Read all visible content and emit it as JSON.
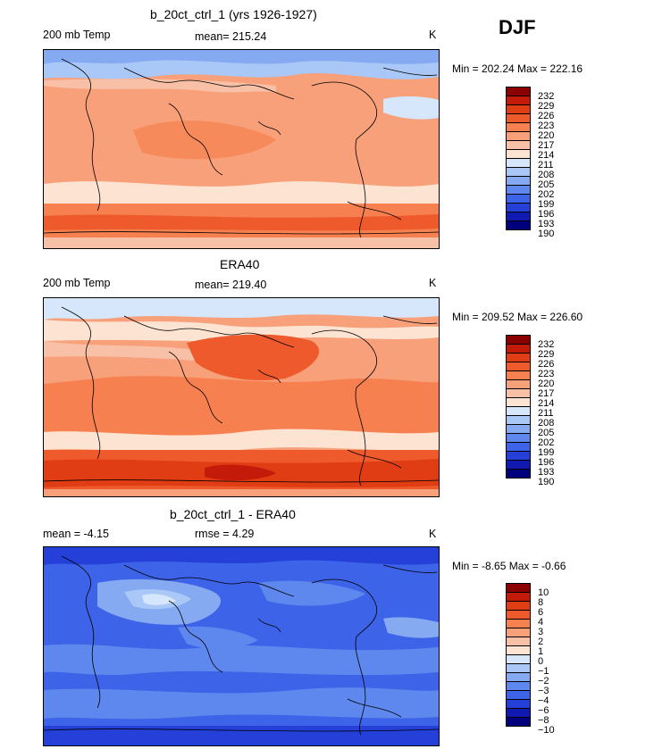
{
  "season": "DJF",
  "panels": [
    {
      "title": "b_20ct_ctrl_1 (yrs 1926-1927)",
      "left_label": "200 mb Temp",
      "center_label": "mean= 215.24",
      "right_label": "K",
      "minmax": "Min = 202.24 Max = 222.16",
      "colorbar_labels": [
        "232",
        "229",
        "226",
        "223",
        "220",
        "217",
        "214",
        "211",
        "208",
        "205",
        "202",
        "199",
        "196",
        "193",
        "190"
      ]
    },
    {
      "title": "ERA40",
      "left_label": "200 mb Temp",
      "center_label": "mean= 219.40",
      "right_label": "K",
      "minmax": "Min = 209.52 Max = 226.60",
      "colorbar_labels": [
        "232",
        "229",
        "226",
        "223",
        "220",
        "217",
        "214",
        "211",
        "208",
        "205",
        "202",
        "199",
        "196",
        "193",
        "190"
      ]
    },
    {
      "title": "b_20ct_ctrl_1 - ERA40",
      "left_label": "mean =  -4.15",
      "center_label": "rmse =   4.29",
      "right_label": "K",
      "minmax": "Min =  -8.65 Max =  -0.66",
      "colorbar_labels": [
        "10",
        "8",
        "6",
        "4",
        "3",
        "2",
        "1",
        "0",
        "−1",
        "−2",
        "−3",
        "−4",
        "−6",
        "−8",
        "−10"
      ]
    }
  ],
  "colors": {
    "colorbar": [
      "#8b0000",
      "#c41a0a",
      "#e03d14",
      "#ee5a2b",
      "#f6804f",
      "#f7a07a",
      "#f8c0a6",
      "#fde3d2",
      "#d6e6fb",
      "#aac8f7",
      "#86aaf2",
      "#5f88ee",
      "#3d63e8",
      "#2440d8",
      "#101ab0",
      "#00007f"
    ],
    "coast": "#000000"
  },
  "chart_data": [
    {
      "type": "heatmap",
      "title": "b_20ct_ctrl_1 (yrs 1926-1927)",
      "variable": "200 mb Temp",
      "units": "K",
      "mean": 215.24,
      "min": 202.24,
      "max": 222.16,
      "levels": [
        190,
        193,
        196,
        199,
        202,
        205,
        208,
        211,
        214,
        217,
        220,
        223,
        226,
        229,
        232
      ]
    },
    {
      "type": "heatmap",
      "title": "ERA40",
      "variable": "200 mb Temp",
      "units": "K",
      "mean": 219.4,
      "min": 209.52,
      "max": 226.6,
      "levels": [
        190,
        193,
        196,
        199,
        202,
        205,
        208,
        211,
        214,
        217,
        220,
        223,
        226,
        229,
        232
      ]
    },
    {
      "type": "heatmap",
      "title": "b_20ct_ctrl_1 - ERA40",
      "units": "K",
      "mean": -4.15,
      "rmse": 4.29,
      "min": -8.65,
      "max": -0.66,
      "levels": [
        -10,
        -8,
        -6,
        -4,
        -3,
        -2,
        -1,
        0,
        1,
        2,
        3,
        4,
        6,
        8,
        10
      ]
    }
  ]
}
